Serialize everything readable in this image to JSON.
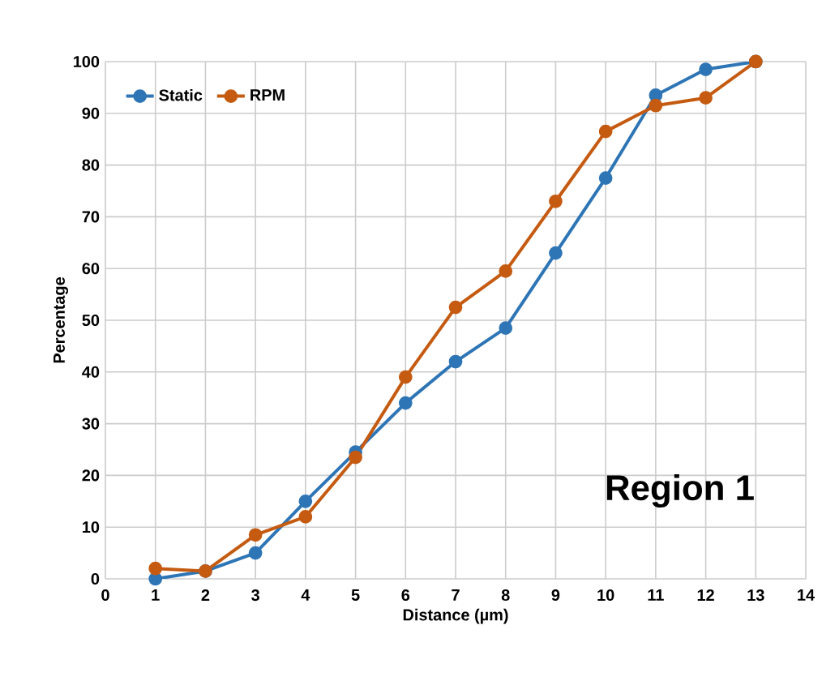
{
  "chart_data": {
    "type": "line",
    "xlabel": "Distance (µm)",
    "ylabel": "Percentage",
    "x": [
      1,
      2,
      3,
      4,
      5,
      6,
      7,
      8,
      9,
      10,
      11,
      12,
      13
    ],
    "series": [
      {
        "name": "Static",
        "color": "#2e75b6",
        "values": [
          0,
          1.5,
          5,
          15,
          24.5,
          34,
          42,
          48.5,
          63,
          77.5,
          93.5,
          98.5,
          100
        ]
      },
      {
        "name": "RPM",
        "color": "#c55a11",
        "values": [
          2,
          1.5,
          8.5,
          12,
          23.5,
          39,
          52.5,
          59.5,
          73,
          86.5,
          91.5,
          93,
          100
        ]
      }
    ],
    "xlim": [
      0,
      14
    ],
    "xticks": [
      0,
      1,
      2,
      3,
      4,
      5,
      6,
      7,
      8,
      9,
      10,
      11,
      12,
      13,
      14
    ],
    "ylim": [
      0,
      100
    ],
    "yticks": [
      0,
      10,
      20,
      30,
      40,
      50,
      60,
      70,
      80,
      90,
      100
    ],
    "grid": true,
    "legend": "top left",
    "marker": "circle",
    "line_style": "solid",
    "annotations": [
      "Region 1"
    ]
  }
}
